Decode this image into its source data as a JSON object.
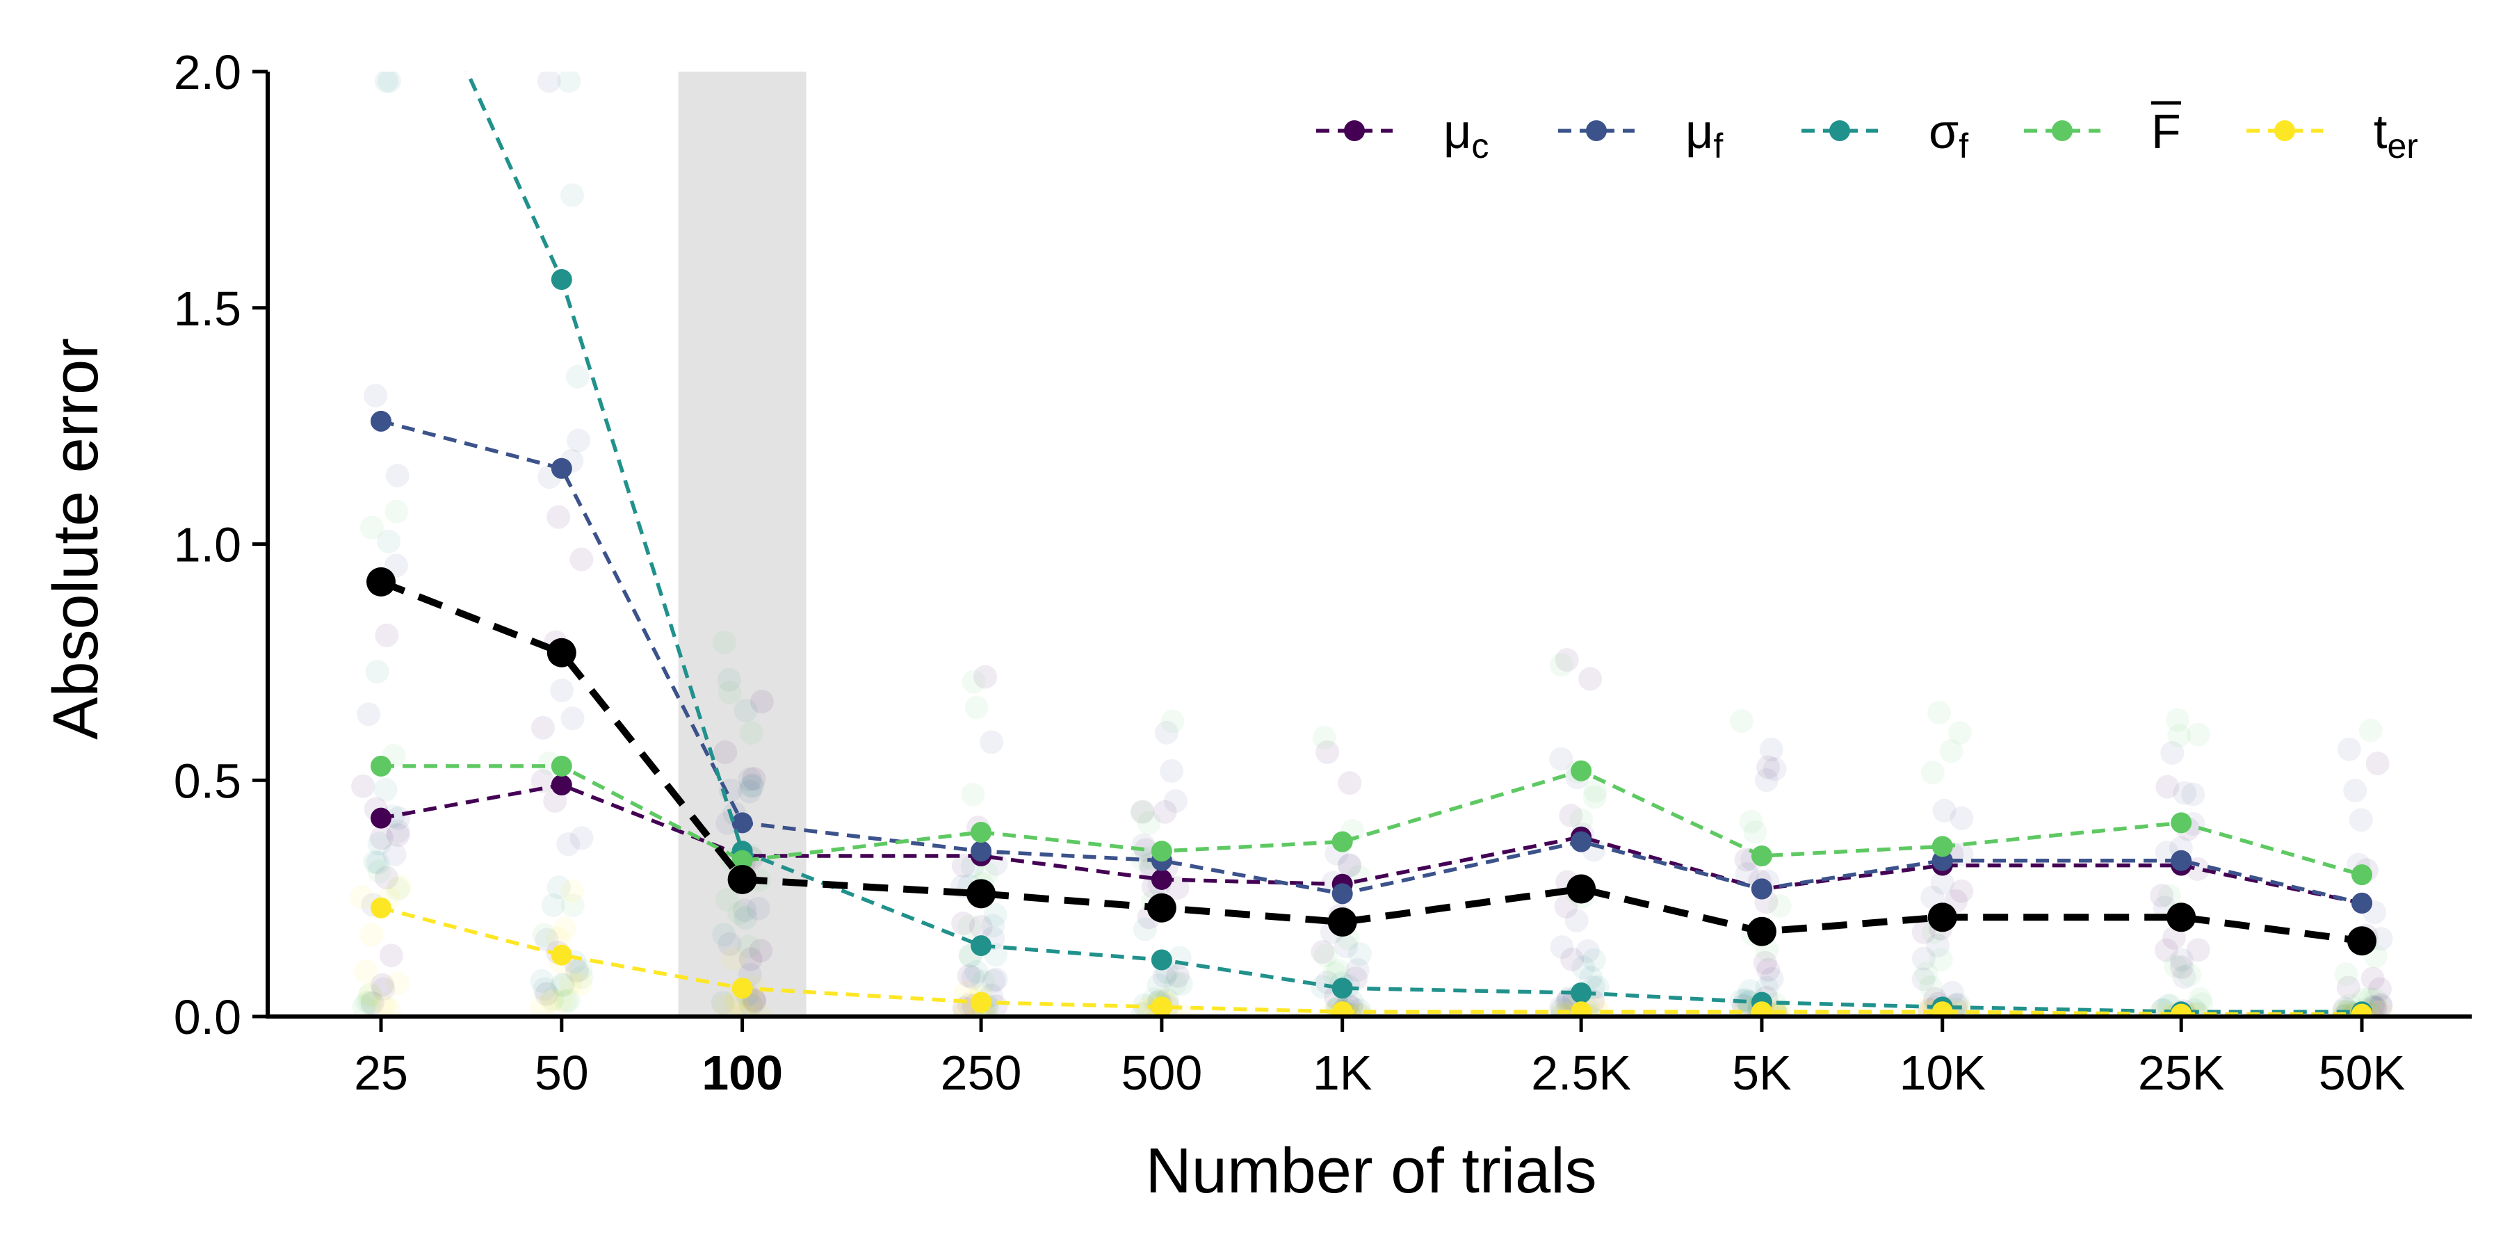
{
  "chart_data": {
    "type": "line",
    "xlabel": "Number of trials",
    "ylabel": "Absolute error",
    "ylim": [
      0,
      2.0
    ],
    "yticks": [
      "0.0",
      "0.5",
      "1.0",
      "1.5",
      "2.0"
    ],
    "yticks_values": [
      0,
      0.5,
      1.0,
      1.5,
      2.0
    ],
    "categories": [
      "25",
      "50",
      "100",
      "250",
      "500",
      "1K",
      "2.5K",
      "5K",
      "10K",
      "25K",
      "50K"
    ],
    "x": [
      25,
      50,
      100,
      250,
      500,
      1000,
      2500,
      5000,
      10000,
      25000,
      50000
    ],
    "x_scale": "log",
    "highlighted_category": "100",
    "legend_position": "top-right",
    "grid": false,
    "series": [
      {
        "name": "μc",
        "name_main": "μ",
        "name_sub": "c",
        "color": "#440154",
        "values": [
          0.42,
          0.49,
          0.34,
          0.34,
          0.29,
          0.28,
          0.38,
          0.27,
          0.32,
          0.32,
          0.24
        ]
      },
      {
        "name": "μf",
        "name_main": "μ",
        "name_sub": "f",
        "color": "#3b528b",
        "values": [
          1.26,
          1.16,
          0.41,
          0.35,
          0.33,
          0.26,
          0.37,
          0.27,
          0.33,
          0.33,
          0.24
        ]
      },
      {
        "name": "σf",
        "name_main": "σ",
        "name_sub": "f",
        "color": "#21918c",
        "values": [
          2.4,
          1.56,
          0.35,
          0.15,
          0.12,
          0.06,
          0.05,
          0.03,
          0.02,
          0.01,
          0.01
        ]
      },
      {
        "name": "F̄",
        "name_main": "F",
        "name_sub": "",
        "overline": true,
        "color": "#5ec962",
        "values": [
          0.53,
          0.53,
          0.33,
          0.39,
          0.35,
          0.37,
          0.52,
          0.34,
          0.36,
          0.41,
          0.3
        ]
      },
      {
        "name": "ter",
        "name_main": "t",
        "name_sub": "er",
        "color": "#fde725",
        "values": [
          0.23,
          0.13,
          0.06,
          0.03,
          0.02,
          0.01,
          0.01,
          0.01,
          0.01,
          0.005,
          0.005
        ]
      },
      {
        "name": "",
        "color": "#000000",
        "values": [
          0.92,
          0.77,
          0.29,
          0.26,
          0.23,
          0.2,
          0.27,
          0.18,
          0.21,
          0.21,
          0.16
        ],
        "role": "mean"
      }
    ]
  }
}
